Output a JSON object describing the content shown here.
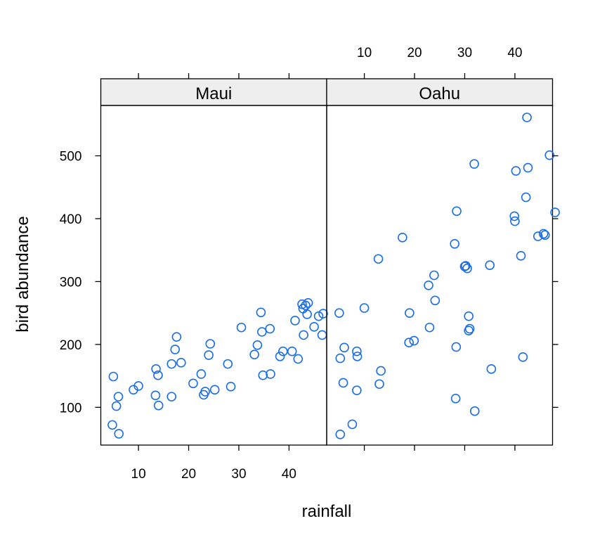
{
  "chart_data": {
    "type": "scatter",
    "xlabel": "rainfall",
    "ylabel": "bird abundance",
    "xlim": [
      2.5,
      47.5
    ],
    "ylim": [
      40,
      580
    ],
    "x_ticks": [
      10,
      20,
      30,
      40
    ],
    "y_ticks": [
      100,
      200,
      300,
      400,
      500
    ],
    "grid": false,
    "legend": "none",
    "point_color": "#1a6ee8",
    "strip_color": "#eeeeee",
    "panels": [
      {
        "name": "Maui",
        "points": [
          {
            "x": 5.0,
            "y": 149
          },
          {
            "x": 4.8,
            "y": 72
          },
          {
            "x": 6.1,
            "y": 58
          },
          {
            "x": 5.6,
            "y": 102
          },
          {
            "x": 6.0,
            "y": 117
          },
          {
            "x": 9.0,
            "y": 128
          },
          {
            "x": 10.0,
            "y": 134
          },
          {
            "x": 13.5,
            "y": 161
          },
          {
            "x": 13.9,
            "y": 151
          },
          {
            "x": 13.4,
            "y": 119
          },
          {
            "x": 14.0,
            "y": 103
          },
          {
            "x": 16.6,
            "y": 117
          },
          {
            "x": 16.6,
            "y": 169
          },
          {
            "x": 17.3,
            "y": 192
          },
          {
            "x": 17.6,
            "y": 212
          },
          {
            "x": 18.5,
            "y": 171
          },
          {
            "x": 20.9,
            "y": 138
          },
          {
            "x": 22.5,
            "y": 153
          },
          {
            "x": 23.0,
            "y": 120
          },
          {
            "x": 23.3,
            "y": 125
          },
          {
            "x": 24.0,
            "y": 183
          },
          {
            "x": 24.3,
            "y": 201
          },
          {
            "x": 25.2,
            "y": 128
          },
          {
            "x": 27.8,
            "y": 169
          },
          {
            "x": 28.4,
            "y": 133
          },
          {
            "x": 30.5,
            "y": 227
          },
          {
            "x": 33.1,
            "y": 184
          },
          {
            "x": 33.7,
            "y": 199
          },
          {
            "x": 34.4,
            "y": 251
          },
          {
            "x": 34.6,
            "y": 220
          },
          {
            "x": 34.8,
            "y": 151
          },
          {
            "x": 36.2,
            "y": 225
          },
          {
            "x": 36.3,
            "y": 153
          },
          {
            "x": 38.2,
            "y": 181
          },
          {
            "x": 38.8,
            "y": 189
          },
          {
            "x": 40.6,
            "y": 189
          },
          {
            "x": 41.2,
            "y": 238
          },
          {
            "x": 41.8,
            "y": 177
          },
          {
            "x": 42.9,
            "y": 215
          },
          {
            "x": 42.6,
            "y": 264
          },
          {
            "x": 42.8,
            "y": 257
          },
          {
            "x": 43.3,
            "y": 262
          },
          {
            "x": 43.6,
            "y": 248
          },
          {
            "x": 43.8,
            "y": 266
          },
          {
            "x": 45.0,
            "y": 228
          },
          {
            "x": 45.9,
            "y": 245
          },
          {
            "x": 46.6,
            "y": 215
          },
          {
            "x": 46.8,
            "y": 249
          }
        ]
      },
      {
        "name": "Oahu",
        "points": [
          {
            "x": 5.0,
            "y": 250
          },
          {
            "x": 5.2,
            "y": 178
          },
          {
            "x": 5.2,
            "y": 57
          },
          {
            "x": 5.8,
            "y": 139
          },
          {
            "x": 6.0,
            "y": 195
          },
          {
            "x": 7.6,
            "y": 73
          },
          {
            "x": 8.5,
            "y": 189
          },
          {
            "x": 8.6,
            "y": 181
          },
          {
            "x": 8.5,
            "y": 127
          },
          {
            "x": 10.0,
            "y": 258
          },
          {
            "x": 12.8,
            "y": 336
          },
          {
            "x": 13.0,
            "y": 137
          },
          {
            "x": 13.3,
            "y": 158
          },
          {
            "x": 17.6,
            "y": 370
          },
          {
            "x": 19.0,
            "y": 250
          },
          {
            "x": 18.9,
            "y": 203
          },
          {
            "x": 19.9,
            "y": 206
          },
          {
            "x": 22.8,
            "y": 294
          },
          {
            "x": 23.0,
            "y": 227
          },
          {
            "x": 23.9,
            "y": 310
          },
          {
            "x": 24.1,
            "y": 270
          },
          {
            "x": 28.0,
            "y": 360
          },
          {
            "x": 28.4,
            "y": 412
          },
          {
            "x": 28.3,
            "y": 196
          },
          {
            "x": 28.2,
            "y": 114
          },
          {
            "x": 30.0,
            "y": 324
          },
          {
            "x": 30.2,
            "y": 325
          },
          {
            "x": 30.5,
            "y": 321
          },
          {
            "x": 30.8,
            "y": 245
          },
          {
            "x": 30.8,
            "y": 222
          },
          {
            "x": 31.0,
            "y": 225
          },
          {
            "x": 31.9,
            "y": 487
          },
          {
            "x": 32.0,
            "y": 94
          },
          {
            "x": 35.0,
            "y": 326
          },
          {
            "x": 35.3,
            "y": 161
          },
          {
            "x": 39.9,
            "y": 404
          },
          {
            "x": 40.0,
            "y": 396
          },
          {
            "x": 40.2,
            "y": 476
          },
          {
            "x": 41.2,
            "y": 341
          },
          {
            "x": 41.6,
            "y": 180
          },
          {
            "x": 42.2,
            "y": 434
          },
          {
            "x": 42.4,
            "y": 561
          },
          {
            "x": 42.6,
            "y": 481
          },
          {
            "x": 44.6,
            "y": 372
          },
          {
            "x": 45.7,
            "y": 376
          },
          {
            "x": 46.0,
            "y": 374
          },
          {
            "x": 46.9,
            "y": 501
          },
          {
            "x": 48.0,
            "y": 410
          }
        ]
      }
    ]
  }
}
